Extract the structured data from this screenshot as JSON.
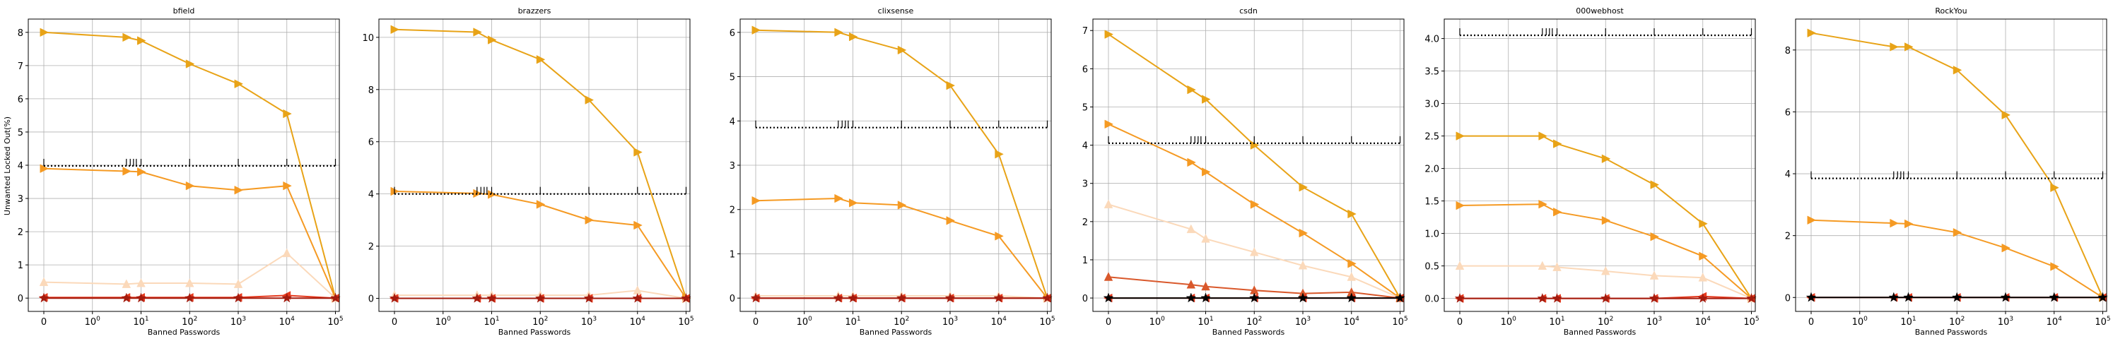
{
  "figure": {
    "ylabel": "Unwanted Locked Out(%)",
    "xlabel": "Banned Passwords"
  },
  "x_ticks": [
    {
      "label": "0",
      "pos": 0
    },
    {
      "label": "10^0",
      "pos": 1
    },
    {
      "label": "10^1",
      "pos": 10
    },
    {
      "label": "10^2",
      "pos": 100
    },
    {
      "label": "10^3",
      "pos": 1000
    },
    {
      "label": "10^4",
      "pos": 10000
    },
    {
      "label": "10^5",
      "pos": 100000
    }
  ],
  "colors": {
    "gold": "#e8a317",
    "orange": "#f59a23",
    "peach": "#fbd9ba",
    "redorange": "#d9582b",
    "red": "#e53a1e",
    "darkred": "#a31b0e",
    "black": "#000000"
  },
  "chart_data": [
    {
      "type": "line",
      "title": "bfield",
      "xscale": "symlog",
      "ylim": [
        -0.4,
        8.4
      ],
      "yticks": [
        0,
        1,
        2,
        3,
        4,
        5,
        6,
        7,
        8
      ],
      "x": [
        0,
        5,
        10,
        100,
        1000,
        10000,
        100000
      ],
      "series": [
        {
          "color": "#e8a317",
          "marker": "tri-right",
          "values": [
            8.0,
            7.85,
            7.75,
            7.05,
            6.45,
            5.55,
            0.0
          ]
        },
        {
          "color": "#f59a23",
          "marker": "tri-right",
          "values": [
            3.9,
            3.82,
            3.8,
            3.38,
            3.25,
            3.38,
            0.0
          ]
        },
        {
          "color": "#000000",
          "marker": "none",
          "style": "dotted",
          "values": [
            3.98,
            3.98,
            3.98,
            3.98,
            3.98,
            3.98,
            3.98
          ]
        },
        {
          "color": "#fbd9ba",
          "marker": "tri-up",
          "values": [
            0.48,
            0.42,
            0.45,
            0.45,
            0.42,
            1.35,
            0.0
          ]
        },
        {
          "color": "#e53a1e",
          "marker": "tri-left",
          "values": [
            0.02,
            0.02,
            0.02,
            0.02,
            0.02,
            0.08,
            0.0
          ]
        },
        {
          "color": "#a31b0e",
          "marker": "star",
          "values": [
            0.0,
            0.0,
            0.0,
            0.0,
            0.0,
            0.0,
            0.0
          ]
        }
      ]
    },
    {
      "type": "line",
      "title": "brazzers",
      "xscale": "symlog",
      "ylim": [
        -0.5,
        10.7
      ],
      "yticks": [
        0,
        2,
        4,
        6,
        8,
        10
      ],
      "x": [
        0,
        5,
        10,
        100,
        1000,
        10000,
        100000
      ],
      "series": [
        {
          "color": "#e8a317",
          "marker": "tri-right",
          "values": [
            10.3,
            10.2,
            9.9,
            9.15,
            7.6,
            5.6,
            0.0
          ]
        },
        {
          "color": "#f59a23",
          "marker": "tri-right",
          "values": [
            4.1,
            4.02,
            3.98,
            3.6,
            3.0,
            2.8,
            0.0
          ]
        },
        {
          "color": "#000000",
          "marker": "none",
          "style": "dotted",
          "values": [
            4.0,
            4.0,
            4.0,
            4.0,
            4.0,
            4.0,
            4.0
          ]
        },
        {
          "color": "#fbd9ba",
          "marker": "tri-up",
          "values": [
            0.12,
            0.12,
            0.12,
            0.12,
            0.12,
            0.3,
            0.0
          ]
        },
        {
          "color": "#e53a1e",
          "marker": "tri-left",
          "values": [
            0.0,
            0.0,
            0.0,
            0.0,
            0.0,
            0.0,
            0.0
          ]
        },
        {
          "color": "#a31b0e",
          "marker": "star",
          "values": [
            0.0,
            0.0,
            0.0,
            0.0,
            0.0,
            0.0,
            0.0
          ]
        }
      ]
    },
    {
      "type": "line",
      "title": "clixsense",
      "xscale": "symlog",
      "ylim": [
        -0.3,
        6.3
      ],
      "yticks": [
        0,
        1,
        2,
        3,
        4,
        5,
        6
      ],
      "x": [
        0,
        5,
        10,
        100,
        1000,
        10000,
        100000
      ],
      "series": [
        {
          "color": "#e8a317",
          "marker": "tri-right",
          "values": [
            6.05,
            6.0,
            5.9,
            5.6,
            4.8,
            3.25,
            0.0
          ]
        },
        {
          "color": "#f59a23",
          "marker": "tri-right",
          "values": [
            2.2,
            2.25,
            2.15,
            2.1,
            1.75,
            1.4,
            0.0
          ]
        },
        {
          "color": "#000000",
          "marker": "none",
          "style": "dotted",
          "values": [
            3.85,
            3.85,
            3.85,
            3.85,
            3.85,
            3.85,
            3.85
          ]
        },
        {
          "color": "#fbd9ba",
          "marker": "tri-up",
          "values": [
            0.05,
            0.05,
            0.05,
            0.05,
            0.05,
            0.05,
            0.0
          ]
        },
        {
          "color": "#e53a1e",
          "marker": "tri-left",
          "values": [
            0.0,
            0.0,
            0.0,
            0.0,
            0.0,
            0.0,
            0.0
          ]
        },
        {
          "color": "#a31b0e",
          "marker": "star",
          "values": [
            0.0,
            0.0,
            0.0,
            0.0,
            0.0,
            0.0,
            0.0
          ]
        }
      ]
    },
    {
      "type": "line",
      "title": "csdn",
      "xscale": "symlog",
      "ylim": [
        -0.35,
        7.3
      ],
      "yticks": [
        0,
        1,
        2,
        3,
        4,
        5,
        6,
        7
      ],
      "x": [
        0,
        5,
        10,
        100,
        1000,
        10000,
        100000
      ],
      "series": [
        {
          "color": "#e8a317",
          "marker": "tri-right",
          "values": [
            6.9,
            5.45,
            5.2,
            4.0,
            2.9,
            2.2,
            0.0
          ]
        },
        {
          "color": "#f59a23",
          "marker": "tri-right",
          "values": [
            4.55,
            3.55,
            3.3,
            2.45,
            1.7,
            0.9,
            0.0
          ]
        },
        {
          "color": "#000000",
          "marker": "none",
          "style": "dotted",
          "values": [
            4.05,
            4.05,
            4.05,
            4.05,
            4.05,
            4.05,
            4.05
          ]
        },
        {
          "color": "#fbd9ba",
          "marker": "tri-up",
          "values": [
            2.45,
            1.8,
            1.55,
            1.2,
            0.85,
            0.55,
            0.0
          ]
        },
        {
          "color": "#d9582b",
          "marker": "tri-up",
          "values": [
            0.55,
            0.35,
            0.3,
            0.2,
            0.12,
            0.15,
            0.0
          ]
        },
        {
          "color": "#e53a1e",
          "marker": "tri-left",
          "values": [
            0.0,
            0.0,
            0.0,
            0.0,
            0.0,
            0.0,
            0.0
          ]
        },
        {
          "color": "#000000",
          "marker": "star",
          "values": [
            0.0,
            0.0,
            0.0,
            0.0,
            0.0,
            0.0,
            0.0
          ]
        }
      ]
    },
    {
      "type": "line",
      "title": "000webhost",
      "xscale": "symlog",
      "ylim": [
        -0.2,
        4.3
      ],
      "yticks": [
        0.0,
        0.5,
        1.0,
        1.5,
        2.0,
        2.5,
        3.0,
        3.5,
        4.0
      ],
      "x": [
        0,
        5,
        10,
        100,
        1000,
        10000,
        100000
      ],
      "series": [
        {
          "color": "#e8a317",
          "marker": "tri-right",
          "values": [
            2.5,
            2.5,
            2.38,
            2.15,
            1.75,
            1.15,
            0.0
          ]
        },
        {
          "color": "#f59a23",
          "marker": "tri-right",
          "values": [
            1.43,
            1.45,
            1.33,
            1.2,
            0.95,
            0.65,
            0.0
          ]
        },
        {
          "color": "#000000",
          "marker": "none",
          "style": "dotted",
          "values": [
            4.05,
            4.05,
            4.05,
            4.05,
            4.05,
            4.05,
            4.05
          ]
        },
        {
          "color": "#fbd9ba",
          "marker": "tri-up",
          "values": [
            0.5,
            0.5,
            0.48,
            0.42,
            0.35,
            0.32,
            0.0
          ]
        },
        {
          "color": "#e53a1e",
          "marker": "tri-left",
          "values": [
            0.0,
            0.0,
            0.0,
            0.0,
            0.0,
            0.03,
            0.0
          ]
        },
        {
          "color": "#a31b0e",
          "marker": "star",
          "values": [
            0.0,
            0.0,
            0.0,
            0.0,
            0.0,
            0.0,
            0.0
          ]
        }
      ]
    },
    {
      "type": "line",
      "title": "RockYou",
      "xscale": "symlog",
      "ylim": [
        -0.45,
        9.0
      ],
      "yticks": [
        0,
        2,
        4,
        6,
        8
      ],
      "x": [
        0,
        5,
        10,
        100,
        1000,
        10000,
        100000
      ],
      "series": [
        {
          "color": "#e8a317",
          "marker": "tri-right",
          "values": [
            8.55,
            8.1,
            8.1,
            7.35,
            5.9,
            3.55,
            0.0
          ]
        },
        {
          "color": "#f59a23",
          "marker": "tri-right",
          "values": [
            2.5,
            2.4,
            2.38,
            2.1,
            1.6,
            1.0,
            0.0
          ]
        },
        {
          "color": "#000000",
          "marker": "none",
          "style": "dotted",
          "values": [
            3.85,
            3.85,
            3.85,
            3.85,
            3.85,
            3.85,
            3.85
          ]
        },
        {
          "color": "#e53a1e",
          "marker": "tri-left",
          "values": [
            0.0,
            0.0,
            0.0,
            0.0,
            0.0,
            0.0,
            0.0
          ]
        },
        {
          "color": "#000000",
          "marker": "star",
          "values": [
            0.0,
            0.0,
            0.0,
            0.0,
            0.0,
            0.0,
            0.0
          ]
        }
      ]
    }
  ]
}
